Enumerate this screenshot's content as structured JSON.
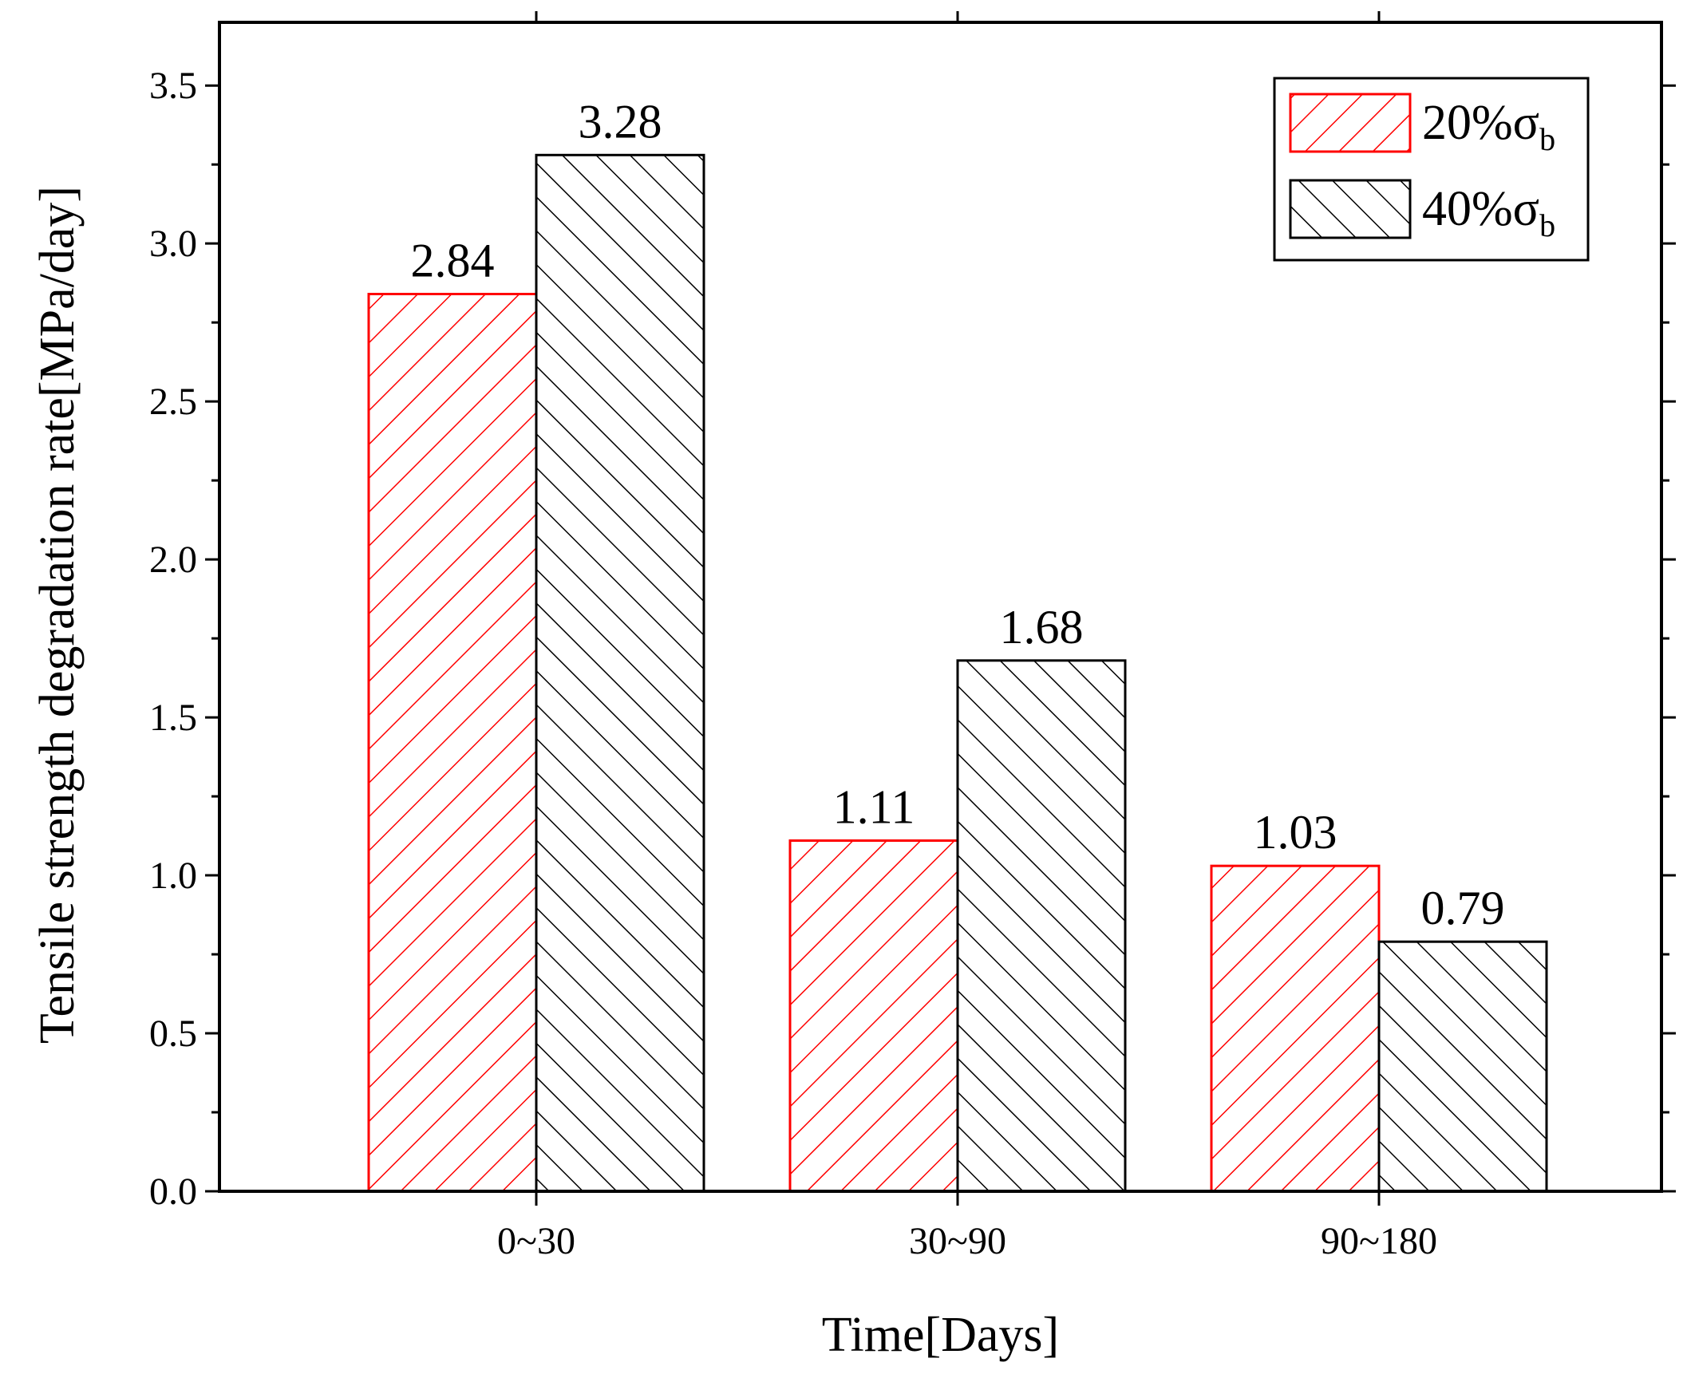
{
  "chart_data": {
    "type": "bar",
    "title": "",
    "xlabel": "Time[Days]",
    "ylabel": "Tensile strength degradation rate[MPa/day]",
    "categories": [
      "0~30",
      "30~90",
      "90~180"
    ],
    "series": [
      {
        "name": "20%σb",
        "legend_main": "20%σ",
        "legend_sub": "b",
        "color": "#ff0000",
        "hatch": "forward",
        "values": [
          2.84,
          1.11,
          1.03
        ],
        "labels": [
          "2.84",
          "1.11",
          "1.03"
        ]
      },
      {
        "name": "40%σb",
        "legend_main": "40%σ",
        "legend_sub": "b",
        "color": "#000000",
        "hatch": "backward",
        "values": [
          3.28,
          1.68,
          0.79
        ],
        "labels": [
          "3.28",
          "1.68",
          "0.79"
        ]
      }
    ],
    "ylim": [
      0,
      3.7
    ],
    "yticks": [
      "0.0",
      "0.5",
      "1.0",
      "1.5",
      "2.0",
      "2.5",
      "3.0",
      "3.5"
    ],
    "ytick_values": [
      0,
      0.5,
      1.0,
      1.5,
      2.0,
      2.5,
      3.0,
      3.5
    ],
    "grid": false,
    "legend_position": "top-right"
  }
}
